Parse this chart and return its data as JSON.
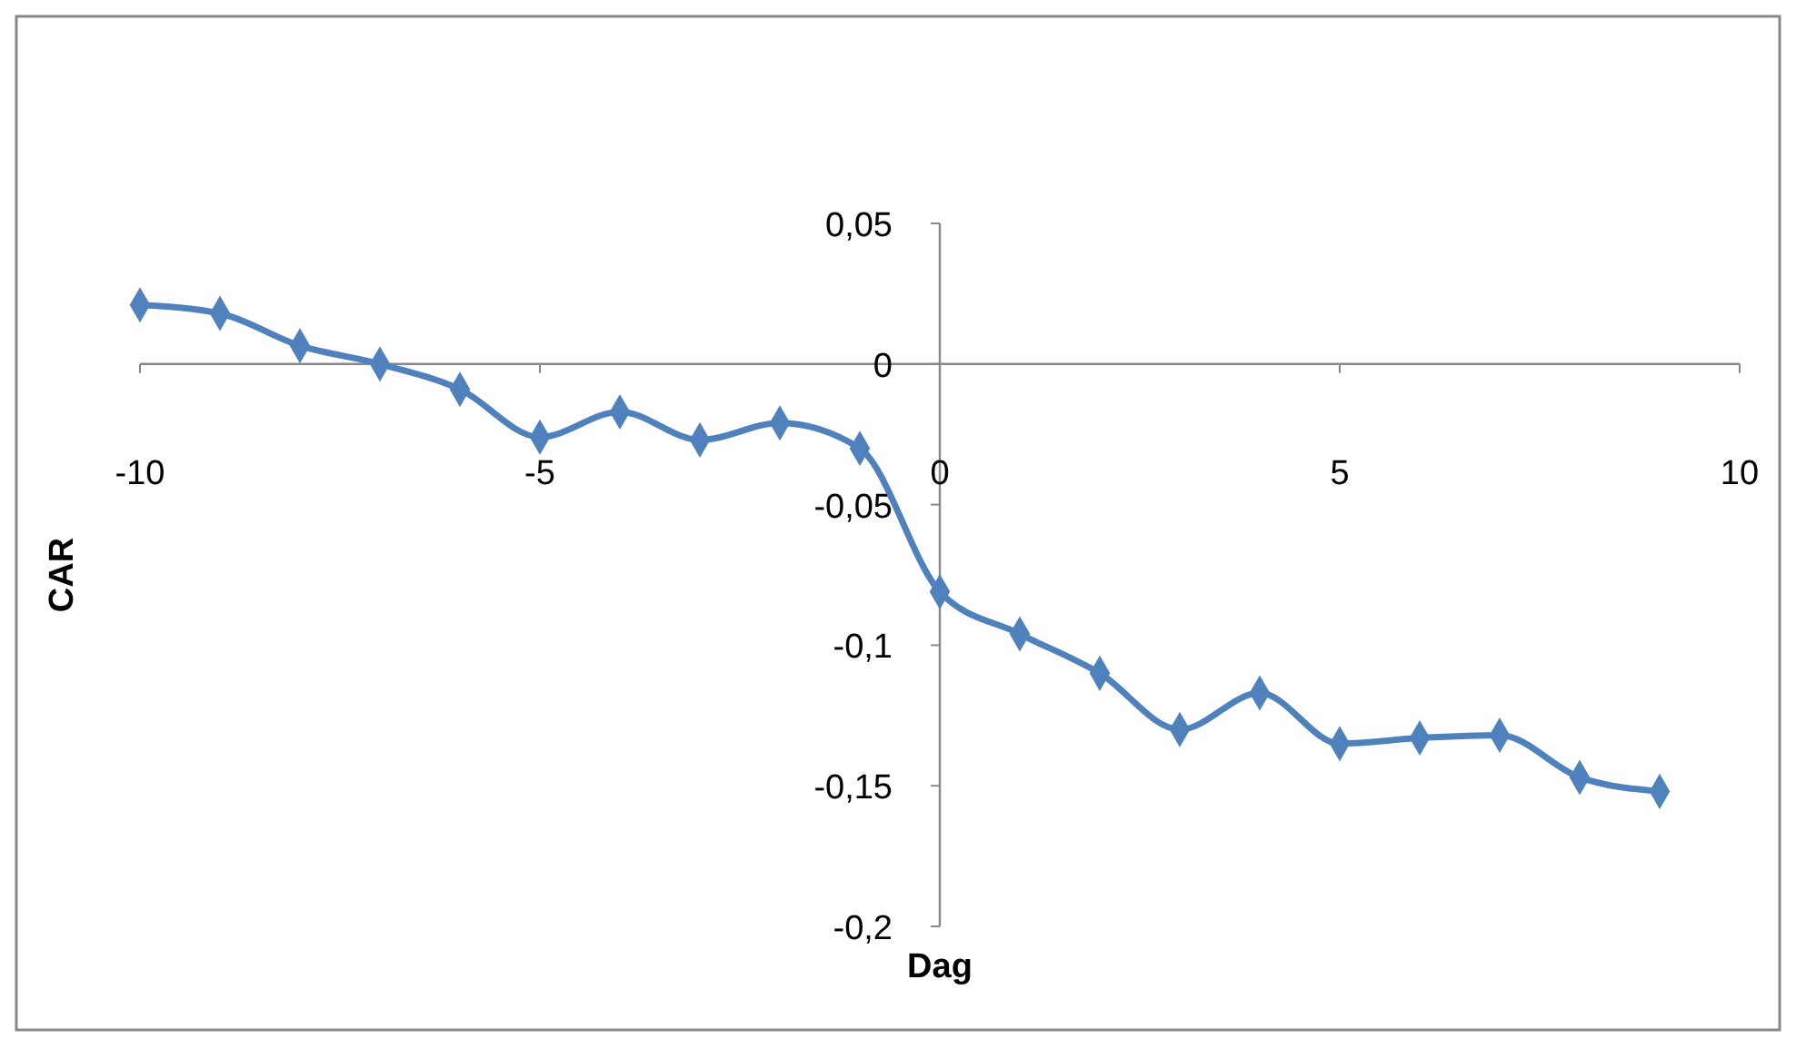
{
  "chart_data": {
    "type": "line",
    "xlabel": "Dag",
    "ylabel": "CAR",
    "x": [
      -10,
      -9,
      -8,
      -7,
      -6,
      -5,
      -4,
      -3,
      -2,
      -1,
      0,
      1,
      2,
      3,
      4,
      5,
      6,
      7,
      8,
      9
    ],
    "series": [
      {
        "color": "#4f81bd",
        "values": [
          0.021,
          0.018,
          0.0065,
          0,
          -0.009,
          -0.026,
          -0.017,
          -0.027,
          -0.021,
          -0.03,
          -0.081,
          -0.096,
          -0.11,
          -0.13,
          -0.117,
          -0.135,
          -0.133,
          -0.132,
          -0.147,
          -0.152
        ]
      }
    ],
    "xlim": [
      -10,
      10
    ],
    "xticks": [
      -10,
      -5,
      0,
      5,
      10
    ],
    "ylim": [
      -0.2,
      0.05
    ],
    "yticks": [
      {
        "value": -0.2,
        "label": "-0,2"
      },
      {
        "value": -0.15,
        "label": "-0,15"
      },
      {
        "value": -0.1,
        "label": "-0,1"
      },
      {
        "value": -0.05,
        "label": "-0,05"
      },
      0,
      {
        "value": 0.05,
        "label": "0,05"
      }
    ],
    "marker": "diamond",
    "line_style": "solid"
  }
}
